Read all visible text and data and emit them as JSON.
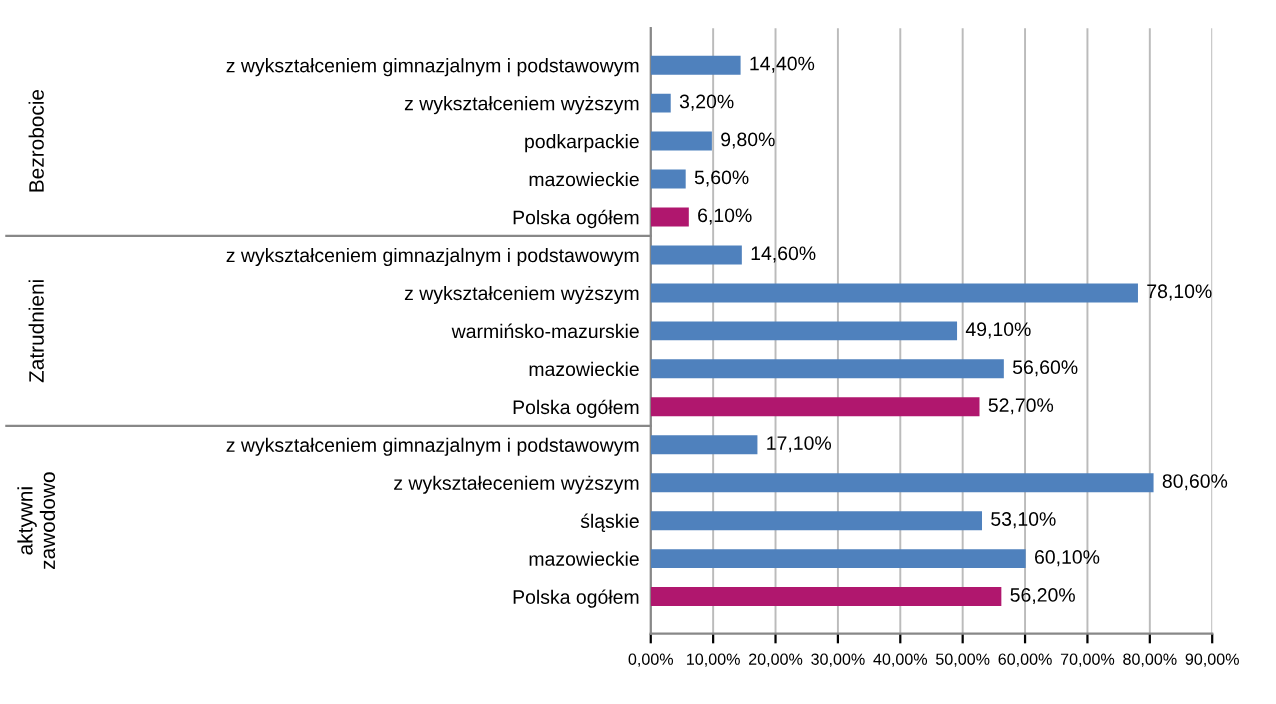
{
  "chart_data": {
    "type": "bar",
    "orientation": "horizontal",
    "categories": [
      "z wykształceniem gimnazjalnym i podstawowym",
      "z wykształceniem wyższym",
      "podkarpackie",
      "mazowieckie",
      "Polska ogółem",
      "z wykształceniem gimnazjalnym i podstawowym",
      "z wykształceniem wyższym",
      "warmińsko-mazurskie",
      "mazowieckie",
      "Polska ogółem",
      "z wykształceniem gimnazjalnym i podstawowym",
      "z wykształeceniem wyższym",
      "śląskie",
      "mazowieckie",
      "Polska ogółem"
    ],
    "values": [
      14.4,
      3.2,
      9.8,
      5.6,
      6.1,
      14.6,
      78.1,
      49.1,
      56.6,
      52.7,
      17.1,
      80.6,
      53.1,
      60.1,
      56.2
    ],
    "value_labels": [
      "14,40%",
      "3,20%",
      "9,80%",
      "5,60%",
      "6,10%",
      "14,60%",
      "78,10%",
      "49,10%",
      "56,60%",
      "52,70%",
      "17,10%",
      "80,60%",
      "53,10%",
      "60,10%",
      "56,20%"
    ],
    "colors": [
      "#4f81bd",
      "#4f81bd",
      "#4f81bd",
      "#4f81bd",
      "#b0176e",
      "#4f81bd",
      "#4f81bd",
      "#4f81bd",
      "#4f81bd",
      "#b0176e",
      "#4f81bd",
      "#4f81bd",
      "#4f81bd",
      "#4f81bd",
      "#b0176e"
    ],
    "annotations": [
      "Bezrobocie",
      "Zatrudnieni",
      "aktywni\nzawodowo"
    ],
    "xlim": [
      0,
      90
    ],
    "xticks": [
      {
        "value": 0,
        "label": "0,00%"
      },
      {
        "value": 10,
        "label": "10,00%"
      },
      {
        "value": 20,
        "label": "20,00%"
      },
      {
        "value": 30,
        "label": "30,00%"
      },
      {
        "value": 40,
        "label": "40,00%"
      },
      {
        "value": 50,
        "label": "50,00%"
      },
      {
        "value": 60,
        "label": "60,00%"
      },
      {
        "value": 70,
        "label": "70,00%"
      },
      {
        "value": 80,
        "label": "80,00%"
      },
      {
        "value": 90,
        "label": "90,00%"
      }
    ],
    "grid": "x"
  }
}
